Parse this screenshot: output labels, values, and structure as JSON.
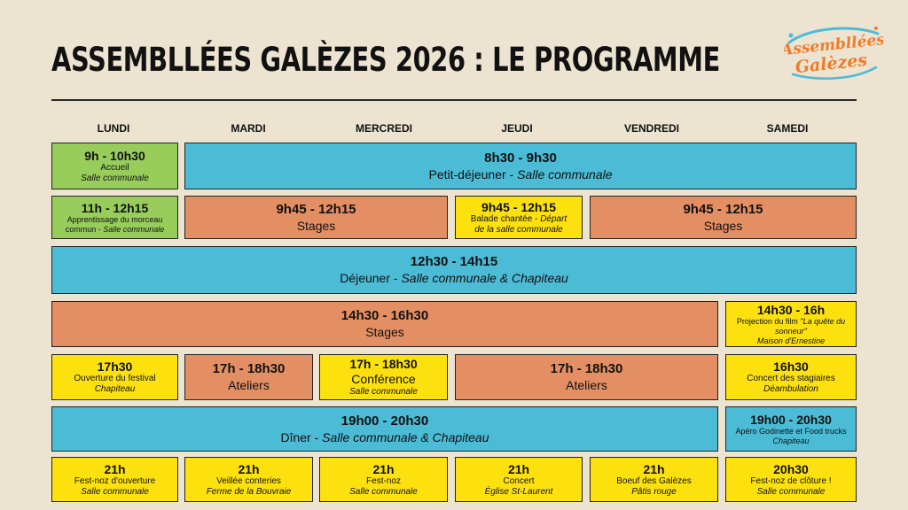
{
  "title": "ASSEMBLLÉES GALÈZES 2026 : LE PROGRAMME",
  "logo": {
    "line1": "Assembllées",
    "line2": "Galèzes",
    "color": "#f07c2a"
  },
  "days": [
    "LUNDI",
    "MARDI",
    "MERCREDI",
    "JEUDI",
    "VENDREDI",
    "SAMEDI"
  ],
  "events": {
    "accueil": {
      "time": "9h - 10h30",
      "label": "Accueil",
      "place": "Salle communale"
    },
    "petitdej": {
      "time": "8h30 - 9h30",
      "label": "Petit-déjeuner - ",
      "place": "Salle communale"
    },
    "morceau": {
      "time": "11h - 12h15",
      "label1": "Apprentissage du morceau",
      "label2": "commun - ",
      "place": "Salle communale"
    },
    "stages_am1": {
      "time": "9h45 - 12h15",
      "label": "Stages"
    },
    "balade": {
      "time": "9h45 - 12h15",
      "label": "Balade chantée - ",
      "place1": "Départ",
      "place2": "de la salle communale"
    },
    "stages_am2": {
      "time": "9h45 - 12h15",
      "label": "Stages"
    },
    "dejeuner": {
      "time": "12h30 - 14h15",
      "label": "Déjeuner - ",
      "place": "Salle communale & Chapiteau"
    },
    "stages_pm": {
      "time": "14h30 - 16h30",
      "label": "Stages"
    },
    "projection": {
      "time": "14h30 - 16h",
      "label": "Projection du film ",
      "film1": "\"La quête du",
      "film2": "sonneur\"",
      "place": "Maison d'Ernestine"
    },
    "ouverture": {
      "time": "17h30",
      "label": "Ouverture du festival",
      "place": "Chapiteau"
    },
    "ateliers1": {
      "time": "17h - 18h30",
      "label": "Ateliers"
    },
    "conference": {
      "time": "17h - 18h30",
      "label": "Conférence",
      "place": "Salle communale"
    },
    "ateliers2": {
      "time": "17h - 18h30",
      "label": "Ateliers"
    },
    "concert_stag": {
      "time": "16h30",
      "label": "Concert des stagiaires",
      "place": "Déambulation"
    },
    "diner": {
      "time": "19h00 - 20h30",
      "label": "Dîner - ",
      "place": "Salle communale & Chapiteau"
    },
    "apero": {
      "time": "19h00 - 20h30",
      "label": "Apéro Godinette et Food trucks",
      "place": "Chapiteau"
    },
    "festnoz_lun": {
      "time": "21h",
      "label": "Fest-noz d'ouverture",
      "place": "Salle communale"
    },
    "veillee": {
      "time": "21h",
      "label": "Veillée conteries",
      "place": "Ferme de la Bouvraie"
    },
    "festnoz_mer": {
      "time": "21h",
      "label": "Fest-noz",
      "place": "Salle communale"
    },
    "concert_jeu": {
      "time": "21h",
      "label": "Concert",
      "place": "Église St-Laurent"
    },
    "boeuf": {
      "time": "21h",
      "label": "Boeuf des Galèzes",
      "place": "Pâtis rouge"
    },
    "festnoz_sam": {
      "time": "20h30",
      "label": "Fest-noz de clôture !",
      "place": "Salle communale"
    }
  }
}
